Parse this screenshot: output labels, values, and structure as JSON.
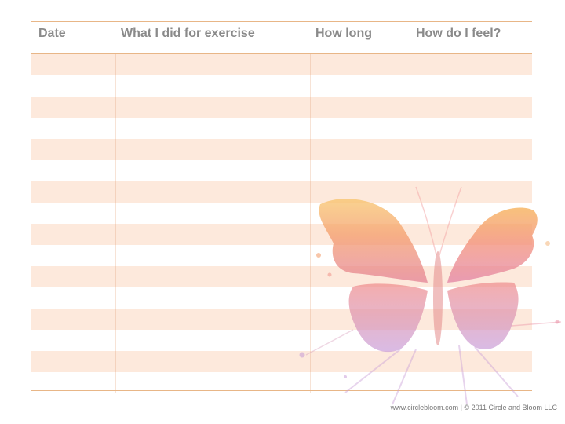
{
  "table": {
    "columns": [
      {
        "label": "Date"
      },
      {
        "label": "What I did for exercise"
      },
      {
        "label": "How long"
      },
      {
        "label": "How do I feel?"
      }
    ],
    "row_count": 16,
    "rows_empty": true
  },
  "footer": {
    "credit": "www.circlebloom.com | © 2011 Circle and Bloom LLC"
  },
  "decoration": {
    "icon": "watercolor-butterfly-icon"
  },
  "colors": {
    "rule": "#e8b687",
    "shaded_row": "#fde9dc",
    "header_text": "#8a8a8a",
    "butterfly_orange": "#f6a85a",
    "butterfly_pink": "#f07a8a",
    "butterfly_purple": "#c79ad8"
  }
}
